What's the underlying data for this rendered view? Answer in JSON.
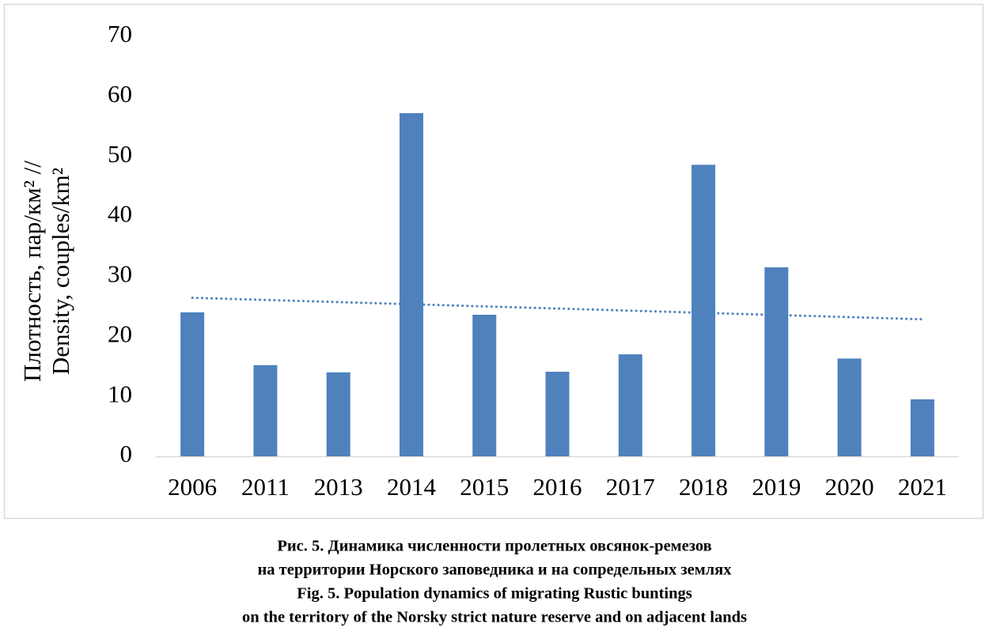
{
  "chart_data": {
    "type": "bar",
    "y_label": [
      "Плотность, пар/км² //",
      "Density, couples/km²"
    ],
    "categories": [
      "2006",
      "2011",
      "2013",
      "2014",
      "2015",
      "2016",
      "2017",
      "2018",
      "2019",
      "2020",
      "2021"
    ],
    "values": [
      24.0,
      15.2,
      14.0,
      57.2,
      23.6,
      14.1,
      17.0,
      48.6,
      31.5,
      16.3,
      9.5
    ],
    "color": "#4f81bd",
    "ylim": [
      0,
      70
    ],
    "yticks": [
      0,
      10,
      20,
      30,
      40,
      50,
      60,
      70
    ],
    "grid": false,
    "trendline": "linear",
    "caption": [
      "Рис. 5. Динамика численности пролетных овсянок-ремезов",
      "на территории Норского заповедника и на сопредельных землях",
      "Fig. 5. Population dynamics of migrating Rustic buntings",
      "on the territory of the Norsky strict nature reserve and on adjacent lands"
    ]
  }
}
